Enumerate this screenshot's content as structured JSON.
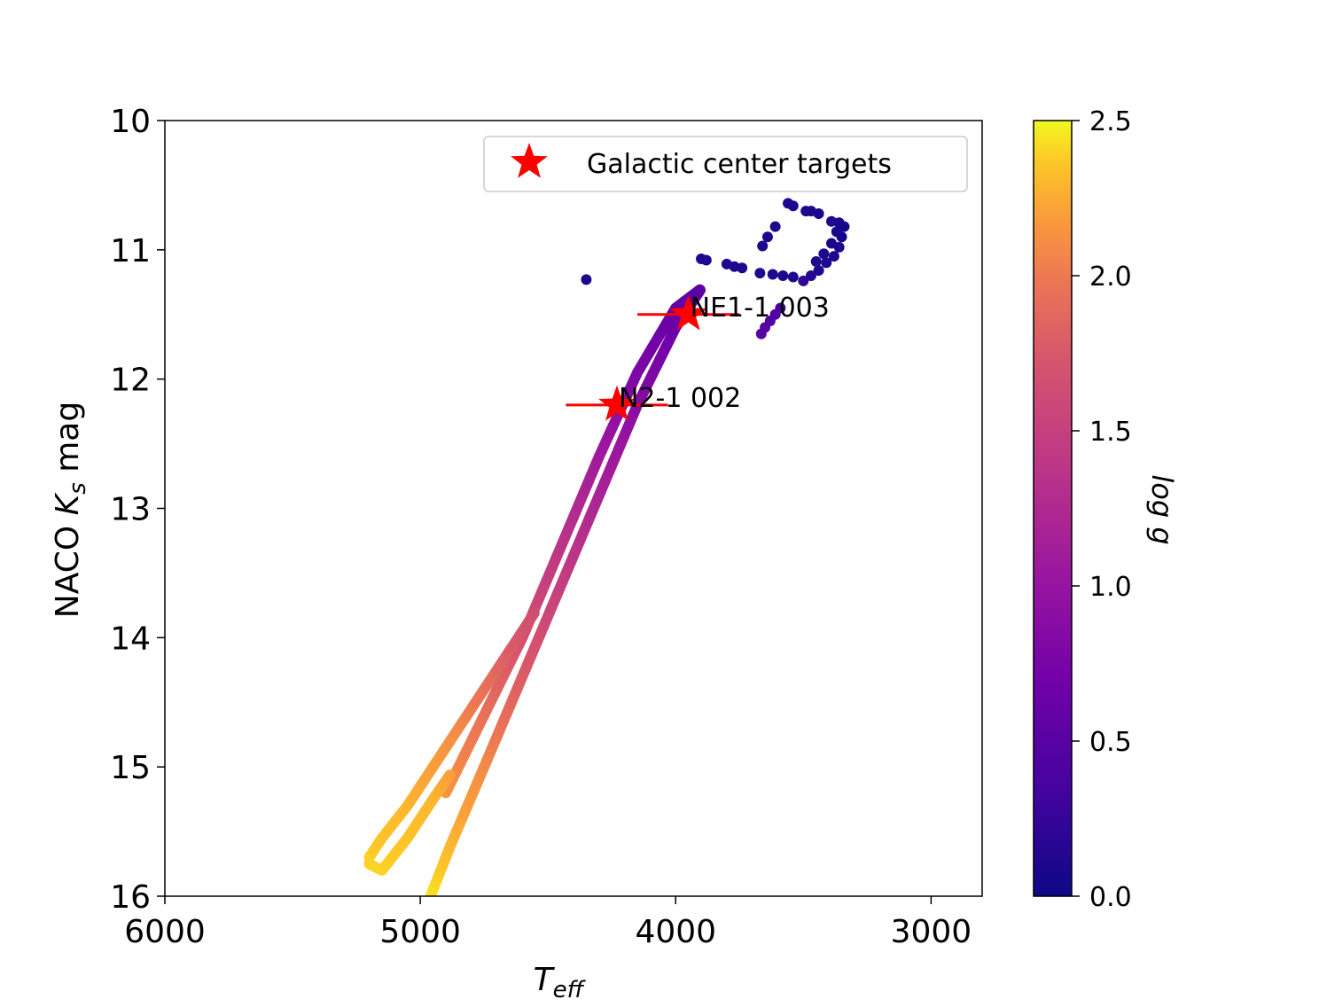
{
  "chart_data": {
    "type": "scatter",
    "x_axis": {
      "label": "T",
      "label_subscript": "eff",
      "range": [
        6000,
        2800
      ],
      "inverted": true,
      "ticks": [
        6000,
        5000,
        4000,
        3000
      ],
      "tick_labels": [
        "6000",
        "5000",
        "4000",
        "3000"
      ]
    },
    "y_axis": {
      "label_prefix": "NACO ",
      "label_var": "K",
      "label_subscript": "s",
      "label_suffix": " mag",
      "range": [
        10,
        16
      ],
      "inverted": true,
      "ticks": [
        10,
        11,
        12,
        13,
        14,
        15,
        16
      ],
      "tick_labels": [
        "10",
        "11",
        "12",
        "13",
        "14",
        "15",
        "16"
      ]
    },
    "colorbar": {
      "label": "log g",
      "colormap": "plasma",
      "range": [
        0.0,
        2.5
      ],
      "ticks": [
        0.0,
        0.5,
        1.0,
        1.5,
        2.0,
        2.5
      ],
      "tick_labels": [
        "0.0",
        "0.5",
        "1.0",
        "1.5",
        "2.0",
        "2.5"
      ]
    },
    "legend": {
      "placement": "top-right",
      "entries": [
        {
          "label": "Galactic center targets",
          "marker": "star",
          "color": "#ff0000"
        }
      ]
    },
    "isochrone_track": [
      {
        "teff": 4960,
        "ks": 16.0,
        "logg": 2.45
      },
      {
        "teff": 4880,
        "ks": 15.6,
        "logg": 2.3
      },
      {
        "teff": 4750,
        "ks": 15.0,
        "logg": 2.1
      },
      {
        "teff": 4600,
        "ks": 14.3,
        "logg": 1.8
      },
      {
        "teff": 4450,
        "ks": 13.6,
        "logg": 1.5
      },
      {
        "teff": 4300,
        "ks": 12.9,
        "logg": 1.2
      },
      {
        "teff": 4150,
        "ks": 12.2,
        "logg": 0.9
      },
      {
        "teff": 4000,
        "ks": 11.6,
        "logg": 0.65
      },
      {
        "teff": 3900,
        "ks": 11.3,
        "logg": 0.5
      }
    ],
    "isochrone_track_upper": [
      {
        "teff": 4900,
        "ks": 15.2,
        "logg": 2.15
      },
      {
        "teff": 4750,
        "ks": 14.6,
        "logg": 1.95
      },
      {
        "teff": 4600,
        "ks": 14.0,
        "logg": 1.7
      },
      {
        "teff": 4450,
        "ks": 13.3,
        "logg": 1.4
      },
      {
        "teff": 4300,
        "ks": 12.6,
        "logg": 1.1
      },
      {
        "teff": 4150,
        "ks": 11.95,
        "logg": 0.8
      },
      {
        "teff": 4000,
        "ks": 11.45,
        "logg": 0.6
      },
      {
        "teff": 3900,
        "ks": 11.3,
        "logg": 0.5
      }
    ],
    "loop_track": [
      {
        "teff": 5200,
        "ks": 15.7,
        "logg": 2.4
      },
      {
        "teff": 5150,
        "ks": 15.55,
        "logg": 2.35
      },
      {
        "teff": 5050,
        "ks": 15.3,
        "logg": 2.3
      },
      {
        "teff": 4950,
        "ks": 15.0,
        "logg": 2.2
      },
      {
        "teff": 4850,
        "ks": 14.7,
        "logg": 2.1
      },
      {
        "teff": 4750,
        "ks": 14.4,
        "logg": 1.95
      },
      {
        "teff": 4650,
        "ks": 14.1,
        "logg": 1.8
      },
      {
        "teff": 4550,
        "ks": 13.8,
        "logg": 1.65
      }
    ],
    "loop_track_lower": [
      {
        "teff": 5200,
        "ks": 15.75,
        "logg": 2.4
      },
      {
        "teff": 5150,
        "ks": 15.8,
        "logg": 2.4
      },
      {
        "teff": 5050,
        "ks": 15.55,
        "logg": 2.35
      },
      {
        "teff": 4950,
        "ks": 15.25,
        "logg": 2.3
      },
      {
        "teff": 4880,
        "ks": 15.05,
        "logg": 2.2
      }
    ],
    "agb_points": [
      {
        "teff": 4350,
        "ks": 11.23,
        "logg": 0.1
      },
      {
        "teff": 3900,
        "ks": 11.07,
        "logg": 0.1
      },
      {
        "teff": 3880,
        "ks": 11.08,
        "logg": 0.1
      },
      {
        "teff": 3800,
        "ks": 11.11,
        "logg": 0.1
      },
      {
        "teff": 3770,
        "ks": 11.13,
        "logg": 0.1
      },
      {
        "teff": 3740,
        "ks": 11.14,
        "logg": 0.1
      },
      {
        "teff": 3670,
        "ks": 11.18,
        "logg": 0.1
      },
      {
        "teff": 3620,
        "ks": 11.19,
        "logg": 0.1
      },
      {
        "teff": 3580,
        "ks": 11.2,
        "logg": 0.1
      },
      {
        "teff": 3540,
        "ks": 11.21,
        "logg": 0.1
      },
      {
        "teff": 3660,
        "ks": 10.97,
        "logg": 0.1
      },
      {
        "teff": 3640,
        "ks": 10.9,
        "logg": 0.1
      },
      {
        "teff": 3610,
        "ks": 10.82,
        "logg": 0.1
      },
      {
        "teff": 3560,
        "ks": 10.64,
        "logg": 0.1
      },
      {
        "teff": 3540,
        "ks": 10.66,
        "logg": 0.1
      },
      {
        "teff": 3490,
        "ks": 10.7,
        "logg": 0.1
      },
      {
        "teff": 3470,
        "ks": 10.7,
        "logg": 0.1
      },
      {
        "teff": 3440,
        "ks": 10.72,
        "logg": 0.1
      },
      {
        "teff": 3390,
        "ks": 10.78,
        "logg": 0.1
      },
      {
        "teff": 3360,
        "ks": 10.79,
        "logg": 0.1
      }
    ],
    "tp_agb_cluster": [
      {
        "teff": 3340,
        "ks": 10.82,
        "logg": 0.05
      },
      {
        "teff": 3350,
        "ks": 10.9,
        "logg": 0.05
      },
      {
        "teff": 3360,
        "ks": 10.98,
        "logg": 0.08
      },
      {
        "teff": 3380,
        "ks": 11.05,
        "logg": 0.1
      },
      {
        "teff": 3410,
        "ks": 11.1,
        "logg": 0.1
      },
      {
        "teff": 3440,
        "ks": 11.16,
        "logg": 0.12
      },
      {
        "teff": 3470,
        "ks": 11.2,
        "logg": 0.15
      },
      {
        "teff": 3500,
        "ks": 11.24,
        "logg": 0.2
      },
      {
        "teff": 3370,
        "ks": 10.86,
        "logg": 0.06
      },
      {
        "teff": 3390,
        "ks": 10.95,
        "logg": 0.08
      },
      {
        "teff": 3420,
        "ks": 11.03,
        "logg": 0.1
      },
      {
        "teff": 3450,
        "ks": 11.09,
        "logg": 0.12
      }
    ],
    "hook_points": [
      {
        "teff": 3590,
        "ks": 11.45,
        "logg": 0.4
      },
      {
        "teff": 3610,
        "ks": 11.5,
        "logg": 0.42
      },
      {
        "teff": 3630,
        "ks": 11.55,
        "logg": 0.45
      },
      {
        "teff": 3650,
        "ks": 11.6,
        "logg": 0.47
      },
      {
        "teff": 3665,
        "ks": 11.65,
        "logg": 0.5
      }
    ],
    "targets": [
      {
        "name": "NE1-1 003",
        "teff": 3950,
        "ks": 11.5,
        "teff_err": 200
      },
      {
        "name": "N2-1 002",
        "teff": 4230,
        "ks": 12.2,
        "teff_err": 200
      }
    ]
  }
}
